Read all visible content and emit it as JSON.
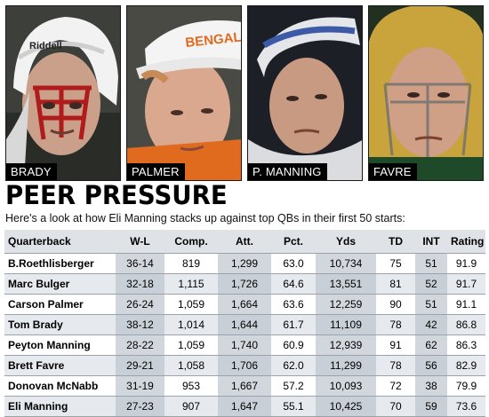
{
  "photos": [
    {
      "label": "BRADY",
      "helmet_text": "Riddell"
    },
    {
      "label": "PALMER",
      "cap_text": "BENGALS"
    },
    {
      "label": "P. MANNING"
    },
    {
      "label": "FAVRE"
    }
  ],
  "title": "PEER PRESSURE",
  "subtitle": "Here's a look at how Eli Manning stacks up against top QBs in their first 50 starts:",
  "table": {
    "headers": [
      "Quarterback",
      "W-L",
      "Comp.",
      "Att.",
      "Pct.",
      "Yds",
      "TD",
      "INT",
      "Rating"
    ],
    "rows": [
      [
        "B.Roethlisberger",
        "36-14",
        "819",
        "1,299",
        "63.0",
        "10,734",
        "75",
        "51",
        "91.9"
      ],
      [
        "Marc Bulger",
        "32-18",
        "1,115",
        "1,726",
        "64.6",
        "13,551",
        "81",
        "52",
        "91.7"
      ],
      [
        "Carson Palmer",
        "26-24",
        "1,059",
        "1,664",
        "63.6",
        "12,259",
        "90",
        "51",
        "91.1"
      ],
      [
        "Tom Brady",
        "38-12",
        "1,014",
        "1,644",
        "61.7",
        "11,109",
        "78",
        "42",
        "86.8"
      ],
      [
        "Peyton Manning",
        "28-22",
        "1,059",
        "1,740",
        "60.9",
        "12,939",
        "91",
        "62",
        "86.3"
      ],
      [
        "Brett Favre",
        "29-21",
        "1,058",
        "1,706",
        "62.0",
        "11,299",
        "78",
        "56",
        "82.9"
      ],
      [
        "Donovan McNabb",
        "31-19",
        "953",
        "1,667",
        "57.2",
        "10,093",
        "72",
        "38",
        "79.9"
      ],
      [
        "Eli Manning",
        "27-23",
        "907",
        "1,647",
        "55.1",
        "10,425",
        "70",
        "59",
        "73.6"
      ]
    ]
  }
}
